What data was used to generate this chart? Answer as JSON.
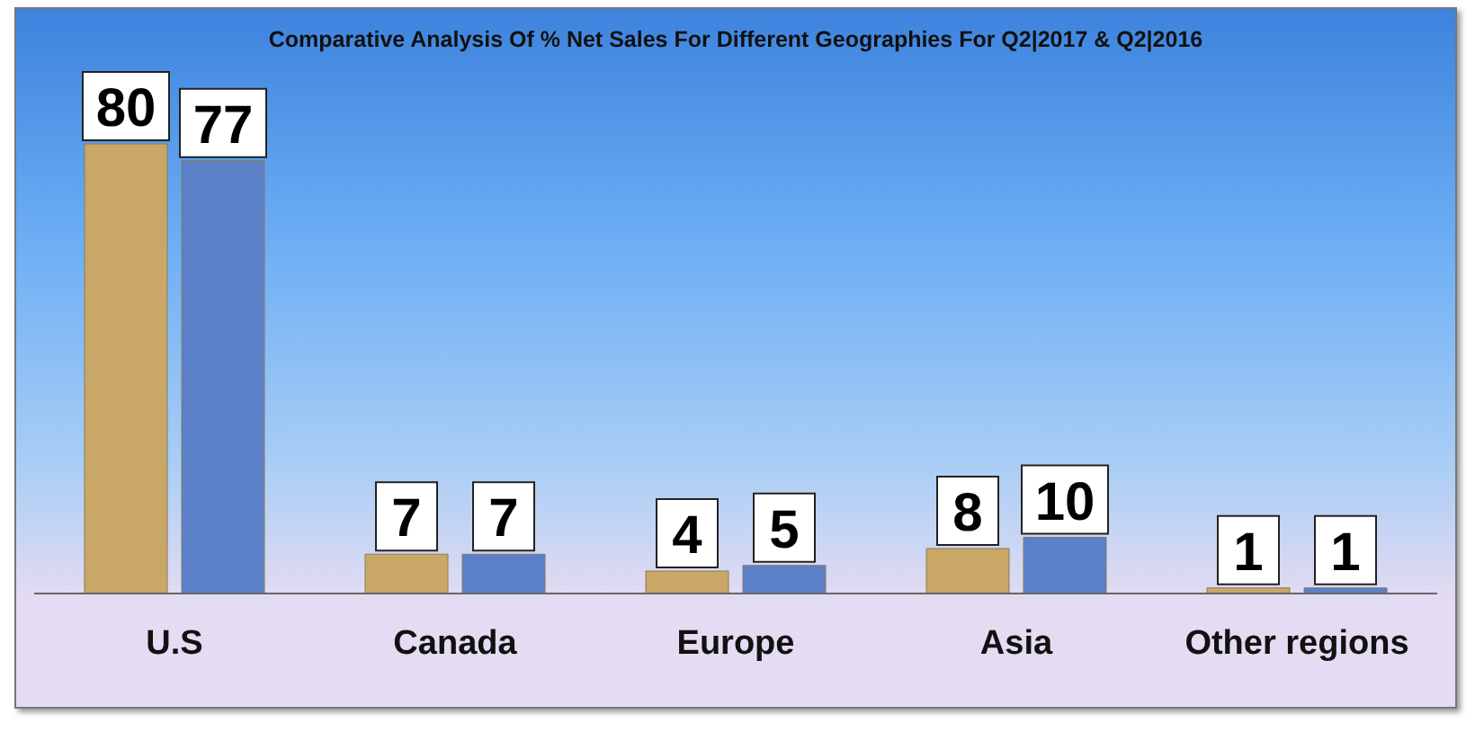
{
  "chart_data": {
    "type": "bar",
    "title": "Comparative Analysis Of % Net Sales For Different Geographies For Q2|2017 & Q2|2016",
    "categories": [
      "U.S",
      "Canada",
      "Europe",
      "Asia",
      "Other regions"
    ],
    "series": [
      {
        "color": "#c8a767",
        "values": [
          80,
          7,
          4,
          8,
          1
        ]
      },
      {
        "color": "#5b80c8",
        "values": [
          77,
          7,
          5,
          10,
          1
        ]
      }
    ],
    "data_labels": true,
    "grid": false,
    "legend": false
  }
}
